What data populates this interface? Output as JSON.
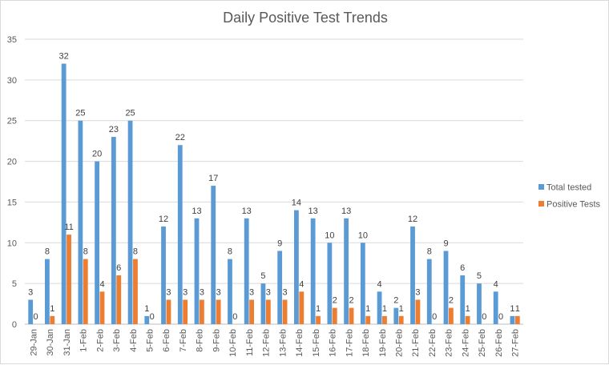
{
  "chart_data": {
    "type": "bar",
    "title": "Daily Positive Test Trends",
    "xlabel": "",
    "ylabel": "",
    "ylim": [
      0,
      35
    ],
    "yticks": [
      0,
      5,
      10,
      15,
      20,
      25,
      30,
      35
    ],
    "grid": true,
    "legend_position": "right",
    "categories": [
      "29-Jan",
      "30-Jan",
      "31-Jan",
      "1-Feb",
      "2-Feb",
      "3-Feb",
      "4-Feb",
      "5-Feb",
      "6-Feb",
      "7-Feb",
      "8-Feb",
      "9-Feb",
      "10-Feb",
      "11-Feb",
      "12-Feb",
      "13-Feb",
      "14-Feb",
      "15-Feb",
      "16-Feb",
      "17-Feb",
      "18-Feb",
      "19-Feb",
      "20-Feb",
      "21-Feb",
      "22-Feb",
      "23-Feb",
      "24-Feb",
      "25-Feb",
      "26-Feb",
      "27-Feb"
    ],
    "series": [
      {
        "name": "Total tested",
        "color": "#5b9bd5",
        "values": [
          3,
          8,
          32,
          25,
          20,
          23,
          25,
          1,
          12,
          22,
          13,
          17,
          8,
          13,
          5,
          9,
          14,
          13,
          10,
          13,
          10,
          4,
          2,
          12,
          8,
          9,
          6,
          5,
          4,
          1
        ]
      },
      {
        "name": "Positive Tests",
        "color": "#ed7d31",
        "values": [
          0,
          1,
          11,
          8,
          4,
          6,
          8,
          0,
          3,
          3,
          3,
          3,
          0,
          3,
          3,
          3,
          4,
          1,
          2,
          2,
          1,
          1,
          1,
          3,
          0,
          2,
          1,
          0,
          0,
          1
        ]
      }
    ]
  }
}
